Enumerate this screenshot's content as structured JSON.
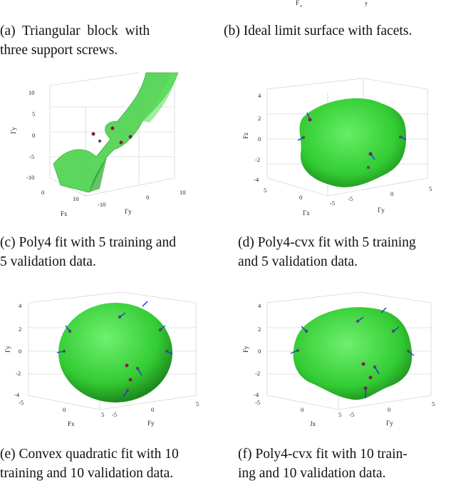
{
  "top_fragments": {
    "label_a": "F",
    "label_a_sub": "x",
    "label_b": "y"
  },
  "captions": {
    "a": {
      "line1": "(a)  Triangular  block  with",
      "line2": "three support screws."
    },
    "b": {
      "line1": "(b) Ideal limit surface with facets."
    },
    "c": {
      "line1": "(c) Poly4 fit with 5 training and",
      "line2": "5 validation data."
    },
    "d": {
      "line1": "(d) Poly4-cvx fit with 5 training",
      "line2": "and 5 validation data."
    },
    "e": {
      "line1": "(e) Convex quadratic fit with 10",
      "line2": "training and 10 validation data."
    },
    "f": {
      "line1": "(f) Poly4-cvx fit with 10 train-",
      "line2": "ing and 10 validation data."
    }
  },
  "figures": {
    "c": {
      "z_ticks": [
        "10",
        "5",
        "0",
        "-5",
        "-10"
      ],
      "x_ticks": [
        "0",
        "10"
      ],
      "y_ticks": [
        "-10",
        "0",
        "10"
      ],
      "z_label": "Γy",
      "x_label": "Fx",
      "y_label": "Γy"
    },
    "d": {
      "z_ticks": [
        "4",
        "2",
        "0",
        "-2",
        "-4"
      ],
      "x_ticks": [
        "5",
        "0",
        "-5"
      ],
      "y_ticks": [
        "-5",
        "0",
        "5"
      ],
      "z_label": "Fz",
      "x_label": "Γx",
      "y_label": "Γy"
    },
    "e": {
      "z_ticks": [
        "4",
        "2",
        "0",
        "-2",
        "-4"
      ],
      "x_ticks": [
        "-5",
        "0",
        "5"
      ],
      "y_ticks": [
        "-5",
        "0",
        "5"
      ],
      "z_label": "Γy",
      "x_label": "Fx",
      "y_label": "Fy"
    },
    "f": {
      "z_ticks": [
        "4",
        "2",
        "0",
        "-2",
        "-4"
      ],
      "x_ticks": [
        "-5",
        "0",
        "5"
      ],
      "y_ticks": [
        "-5",
        "0",
        "5"
      ],
      "z_label": "Fy",
      "x_label": "Jx",
      "y_label": "Γy"
    }
  },
  "colors": {
    "surface": "#33cc33",
    "surface_dark": "#1f8f1f",
    "point_training": "#8a1a4a",
    "arrow": "#2233dd",
    "grid": "#bbbbbb"
  }
}
